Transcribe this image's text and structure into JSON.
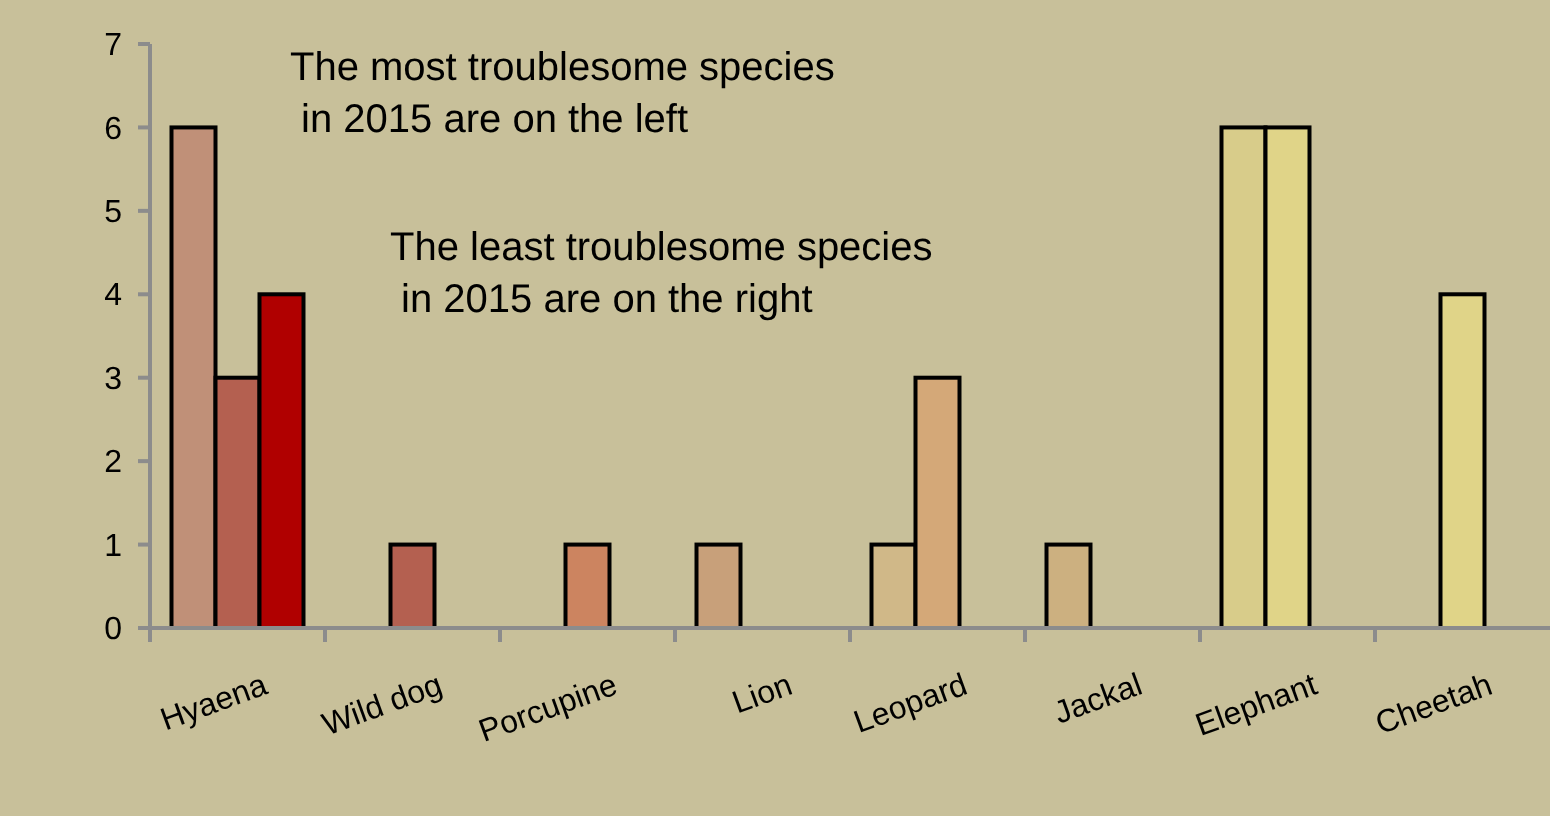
{
  "chart_data": {
    "type": "bar",
    "categories": [
      "Hyaena",
      "Wild dog",
      "Porcupine",
      "Lion",
      "Leopard",
      "Jackal",
      "Elephant",
      "Cheetah"
    ],
    "series": [
      {
        "values": [
          6,
          null,
          null,
          1,
          1,
          1,
          6,
          null
        ],
        "colors": [
          "#c09078",
          null,
          null,
          "#c8a07a",
          "#d0b888",
          "#ccb080",
          "#d8cc8a",
          null
        ]
      },
      {
        "values": [
          3,
          1,
          1,
          null,
          3,
          null,
          6,
          4
        ],
        "colors": [
          "#b46050",
          "#b46050",
          "#cc8460",
          null,
          "#d4a878",
          null,
          "#e0d488",
          "#e0d488"
        ]
      },
      {
        "values": [
          4,
          null,
          null,
          null,
          null,
          null,
          null,
          null
        ],
        "colors": [
          "#b00000",
          null,
          null,
          null,
          null,
          null,
          null,
          null
        ]
      }
    ],
    "ylim": [
      0,
      7
    ],
    "yticks": [
      0,
      1,
      2,
      3,
      4,
      5,
      6,
      7
    ],
    "grid": false,
    "annotations": [
      "The most troublesome species\n in 2015 are on the left",
      "The least troublesome species\n in 2015 are on the right"
    ]
  }
}
